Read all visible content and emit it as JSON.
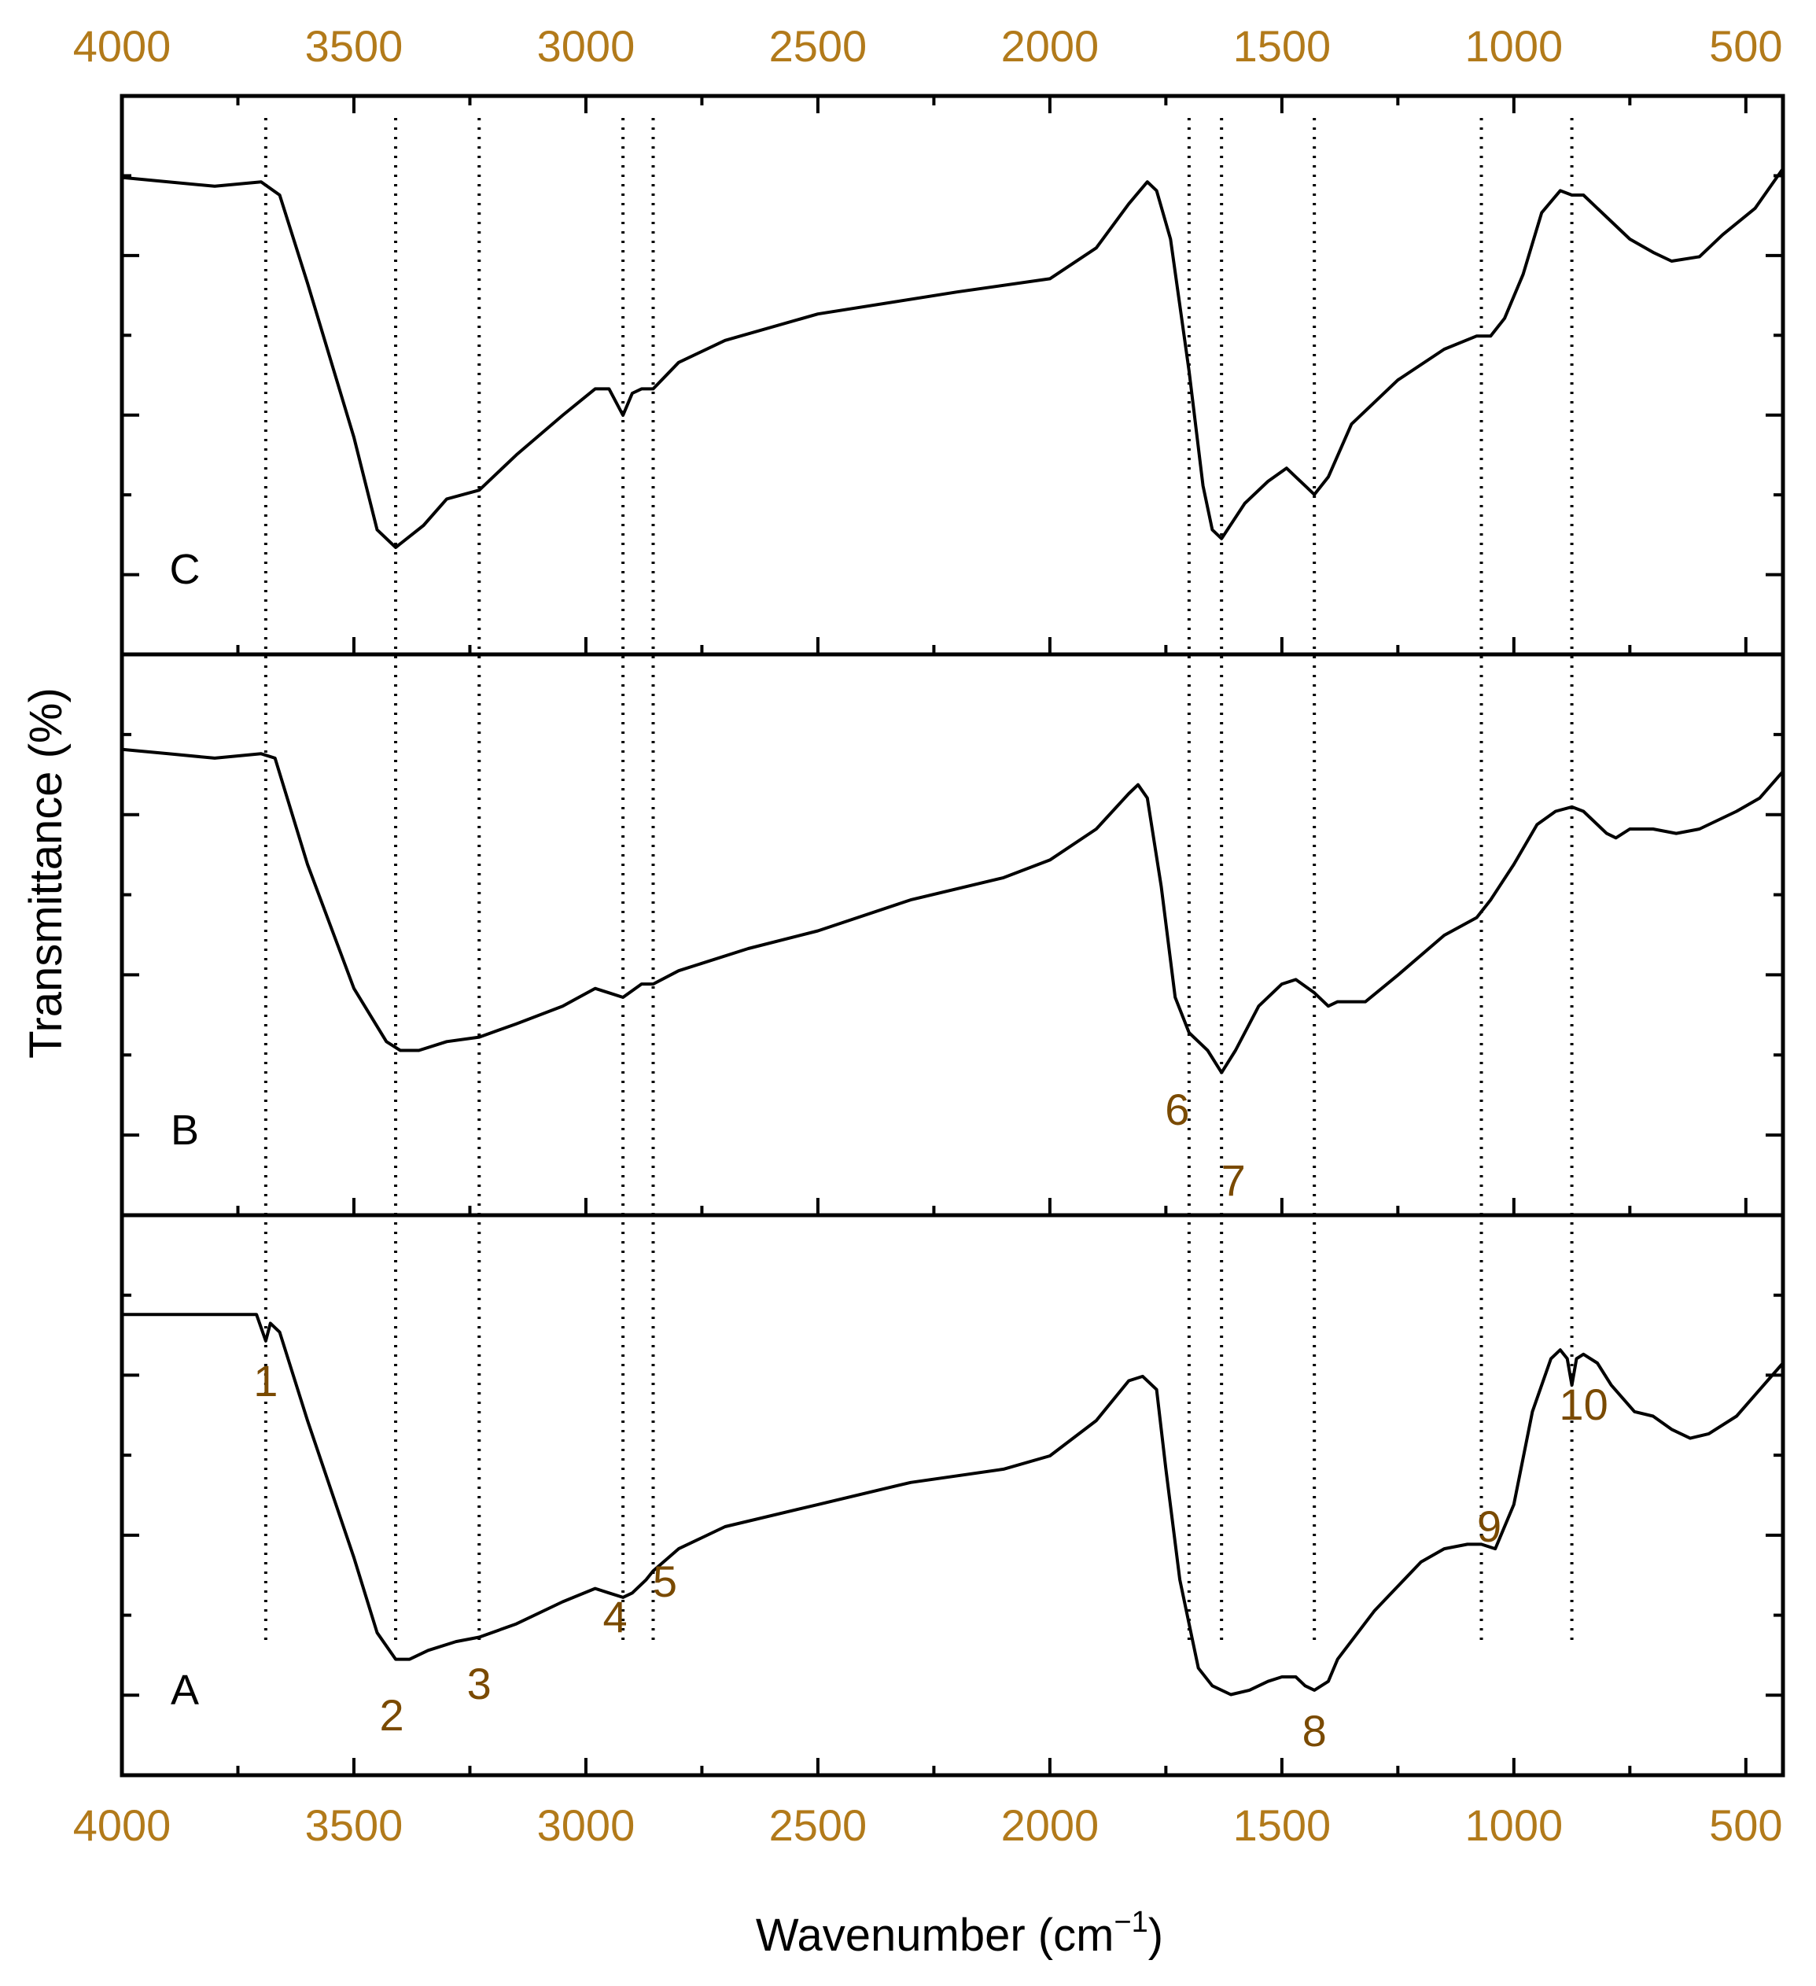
{
  "chart_data": {
    "type": "line",
    "xlabel": {
      "main": "Wavenumber (cm",
      "sup": "−1",
      "tail": ")"
    },
    "ylabel": "Transmittance (%)",
    "xlim": [
      4000,
      420
    ],
    "x_ticks": [
      4000,
      3500,
      3000,
      2500,
      2000,
      1500,
      1000,
      500
    ],
    "x_tick_labels": [
      "4000",
      "3500",
      "3000",
      "2500",
      "2000",
      "1500",
      "1000",
      "500"
    ],
    "ylim": [
      0,
      100
    ],
    "grid": false,
    "guide_lines": [
      3690,
      3410,
      3230,
      2920,
      2855,
      1700,
      1630,
      1430,
      1070,
      875
    ],
    "peak_labels": [
      {
        "text": "1",
        "x": 3690
      },
      {
        "text": "2",
        "x": 3410
      },
      {
        "text": "3",
        "x": 3230
      },
      {
        "text": "4",
        "x": 2920
      },
      {
        "text": "5",
        "x": 2855
      },
      {
        "text": "6",
        "x": 1700
      },
      {
        "text": "7",
        "x": 1630
      },
      {
        "text": "8",
        "x": 1430
      },
      {
        "text": "9",
        "x": 1070
      },
      {
        "text": "10",
        "x": 875
      }
    ],
    "panels": [
      {
        "label": "C",
        "points": [
          [
            4000,
            94
          ],
          [
            3900,
            93
          ],
          [
            3800,
            92
          ],
          [
            3700,
            93
          ],
          [
            3660,
            90
          ],
          [
            3600,
            70
          ],
          [
            3500,
            35
          ],
          [
            3450,
            14
          ],
          [
            3410,
            10
          ],
          [
            3350,
            15
          ],
          [
            3300,
            21
          ],
          [
            3230,
            23
          ],
          [
            3150,
            31
          ],
          [
            3050,
            40
          ],
          [
            2980,
            46
          ],
          [
            2950,
            46
          ],
          [
            2920,
            40
          ],
          [
            2900,
            45
          ],
          [
            2880,
            46
          ],
          [
            2855,
            46
          ],
          [
            2800,
            52
          ],
          [
            2700,
            57
          ],
          [
            2500,
            63
          ],
          [
            2200,
            68
          ],
          [
            2000,
            71
          ],
          [
            1900,
            78
          ],
          [
            1830,
            88
          ],
          [
            1790,
            93
          ],
          [
            1770,
            91
          ],
          [
            1740,
            80
          ],
          [
            1700,
            50
          ],
          [
            1670,
            24
          ],
          [
            1650,
            14
          ],
          [
            1630,
            12
          ],
          [
            1580,
            20
          ],
          [
            1530,
            25
          ],
          [
            1490,
            28
          ],
          [
            1450,
            24
          ],
          [
            1430,
            22
          ],
          [
            1400,
            26
          ],
          [
            1350,
            38
          ],
          [
            1250,
            48
          ],
          [
            1150,
            55
          ],
          [
            1080,
            58
          ],
          [
            1050,
            58
          ],
          [
            1020,
            62
          ],
          [
            980,
            72
          ],
          [
            940,
            86
          ],
          [
            900,
            91
          ],
          [
            875,
            90
          ],
          [
            850,
            90
          ],
          [
            800,
            85
          ],
          [
            750,
            80
          ],
          [
            700,
            77
          ],
          [
            660,
            75
          ],
          [
            600,
            76
          ],
          [
            550,
            81
          ],
          [
            480,
            87
          ],
          [
            420,
            96
          ]
        ]
      },
      {
        "label": "B",
        "points": [
          [
            4000,
            91
          ],
          [
            3900,
            90
          ],
          [
            3800,
            89
          ],
          [
            3700,
            90
          ],
          [
            3670,
            89
          ],
          [
            3600,
            65
          ],
          [
            3500,
            37
          ],
          [
            3430,
            25
          ],
          [
            3400,
            23
          ],
          [
            3360,
            23
          ],
          [
            3300,
            25
          ],
          [
            3230,
            26
          ],
          [
            3150,
            29
          ],
          [
            3050,
            33
          ],
          [
            2980,
            37
          ],
          [
            2950,
            36
          ],
          [
            2920,
            35
          ],
          [
            2880,
            38
          ],
          [
            2855,
            38
          ],
          [
            2800,
            41
          ],
          [
            2650,
            46
          ],
          [
            2500,
            50
          ],
          [
            2300,
            57
          ],
          [
            2100,
            62
          ],
          [
            2000,
            66
          ],
          [
            1900,
            73
          ],
          [
            1830,
            81
          ],
          [
            1810,
            83
          ],
          [
            1790,
            80
          ],
          [
            1760,
            60
          ],
          [
            1730,
            35
          ],
          [
            1700,
            27
          ],
          [
            1660,
            23
          ],
          [
            1630,
            18
          ],
          [
            1600,
            23
          ],
          [
            1550,
            33
          ],
          [
            1500,
            38
          ],
          [
            1470,
            39
          ],
          [
            1430,
            36
          ],
          [
            1400,
            33
          ],
          [
            1380,
            34
          ],
          [
            1320,
            34
          ],
          [
            1250,
            40
          ],
          [
            1150,
            49
          ],
          [
            1080,
            53
          ],
          [
            1050,
            57
          ],
          [
            1000,
            65
          ],
          [
            950,
            74
          ],
          [
            910,
            77
          ],
          [
            875,
            78
          ],
          [
            850,
            77
          ],
          [
            800,
            72
          ],
          [
            780,
            71
          ],
          [
            750,
            73
          ],
          [
            700,
            73
          ],
          [
            650,
            72
          ],
          [
            600,
            73
          ],
          [
            520,
            77
          ],
          [
            470,
            80
          ],
          [
            420,
            86
          ]
        ]
      },
      {
        "label": "A",
        "points": [
          [
            4000,
            90
          ],
          [
            3800,
            90
          ],
          [
            3710,
            90
          ],
          [
            3690,
            84
          ],
          [
            3680,
            88
          ],
          [
            3660,
            86
          ],
          [
            3600,
            66
          ],
          [
            3500,
            35
          ],
          [
            3450,
            18
          ],
          [
            3410,
            12
          ],
          [
            3380,
            12
          ],
          [
            3340,
            14
          ],
          [
            3280,
            16
          ],
          [
            3230,
            17
          ],
          [
            3150,
            20
          ],
          [
            3050,
            25
          ],
          [
            2980,
            28
          ],
          [
            2950,
            27
          ],
          [
            2920,
            26
          ],
          [
            2900,
            27
          ],
          [
            2870,
            30
          ],
          [
            2855,
            32
          ],
          [
            2800,
            37
          ],
          [
            2700,
            42
          ],
          [
            2500,
            47
          ],
          [
            2300,
            52
          ],
          [
            2100,
            55
          ],
          [
            2000,
            58
          ],
          [
            1900,
            66
          ],
          [
            1830,
            75
          ],
          [
            1800,
            76
          ],
          [
            1770,
            73
          ],
          [
            1750,
            55
          ],
          [
            1720,
            30
          ],
          [
            1680,
            10
          ],
          [
            1650,
            6
          ],
          [
            1610,
            4
          ],
          [
            1570,
            5
          ],
          [
            1530,
            7
          ],
          [
            1500,
            8
          ],
          [
            1470,
            8
          ],
          [
            1450,
            6
          ],
          [
            1430,
            5
          ],
          [
            1400,
            7
          ],
          [
            1380,
            12
          ],
          [
            1300,
            23
          ],
          [
            1200,
            34
          ],
          [
            1150,
            37
          ],
          [
            1100,
            38
          ],
          [
            1070,
            38
          ],
          [
            1040,
            37
          ],
          [
            1000,
            47
          ],
          [
            960,
            68
          ],
          [
            920,
            80
          ],
          [
            900,
            82
          ],
          [
            885,
            80
          ],
          [
            875,
            74
          ],
          [
            865,
            80
          ],
          [
            850,
            81
          ],
          [
            820,
            79
          ],
          [
            790,
            74
          ],
          [
            740,
            68
          ],
          [
            700,
            67
          ],
          [
            660,
            64
          ],
          [
            620,
            62
          ],
          [
            580,
            63
          ],
          [
            520,
            67
          ],
          [
            470,
            73
          ],
          [
            420,
            79
          ]
        ]
      }
    ]
  }
}
